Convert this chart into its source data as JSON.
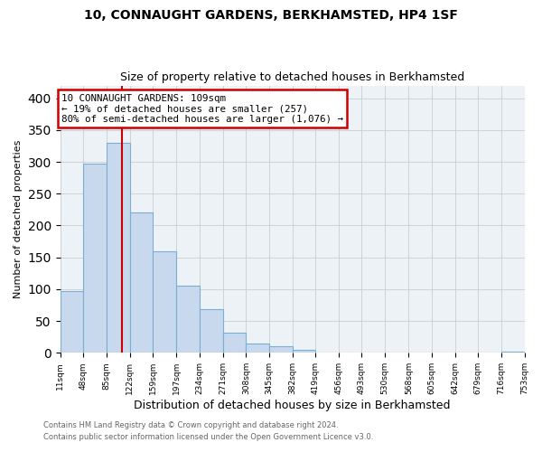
{
  "title": "10, CONNAUGHT GARDENS, BERKHAMSTED, HP4 1SF",
  "subtitle": "Size of property relative to detached houses in Berkhamsted",
  "xlabel": "Distribution of detached houses by size in Berkhamsted",
  "ylabel": "Number of detached properties",
  "bin_edges": [
    11,
    48,
    85,
    122,
    159,
    197,
    234,
    271,
    308,
    345,
    382,
    419,
    456,
    493,
    530,
    568,
    605,
    642,
    679,
    716,
    753
  ],
  "bar_heights": [
    97,
    297,
    330,
    220,
    160,
    105,
    68,
    32,
    14,
    10,
    5,
    1,
    0,
    0,
    0,
    0,
    0,
    0,
    0,
    2
  ],
  "bar_color": "#c8d9ee",
  "bar_edgecolor": "#7aaed4",
  "property_line_x": 109,
  "property_line_color": "#cc0000",
  "annotation_title": "10 CONNAUGHT GARDENS: 109sqm",
  "annotation_line1": "← 19% of detached houses are smaller (257)",
  "annotation_line2": "80% of semi-detached houses are larger (1,076) →",
  "annotation_box_color": "#cc0000",
  "ylim": [
    0,
    420
  ],
  "yticks": [
    0,
    50,
    100,
    150,
    200,
    250,
    300,
    350,
    400
  ],
  "tick_labels": [
    "11sqm",
    "48sqm",
    "85sqm",
    "122sqm",
    "159sqm",
    "197sqm",
    "234sqm",
    "271sqm",
    "308sqm",
    "345sqm",
    "382sqm",
    "419sqm",
    "456sqm",
    "493sqm",
    "530sqm",
    "568sqm",
    "605sqm",
    "642sqm",
    "679sqm",
    "716sqm",
    "753sqm"
  ],
  "footer_line1": "Contains HM Land Registry data © Crown copyright and database right 2024.",
  "footer_line2": "Contains public sector information licensed under the Open Government Licence v3.0.",
  "background_color": "#ffffff",
  "grid_color": "#cccccc",
  "ax_facecolor": "#edf2f7"
}
